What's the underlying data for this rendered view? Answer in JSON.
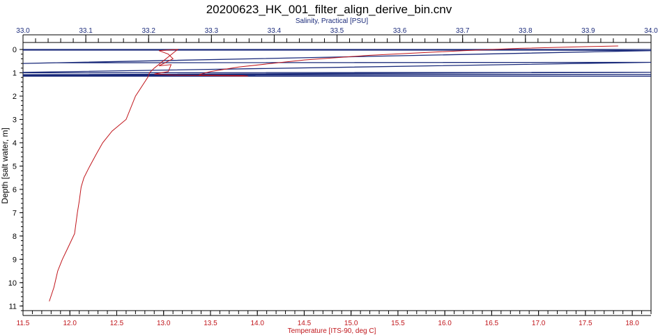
{
  "chart_data": {
    "type": "line",
    "title": "20200623_HK_001_filter_align_derive_bin.cnv",
    "top_axis": {
      "label": "Salinity, Practical [PSU]",
      "lim": [
        33.0,
        34.0
      ],
      "ticks": [
        "33.0",
        "33.1",
        "33.2",
        "33.3",
        "33.4",
        "33.5",
        "33.6",
        "33.7",
        "33.8",
        "33.9",
        "34.0"
      ],
      "color": "#1a2a7a"
    },
    "bottom_axis": {
      "label": "Temperature [ITS-90, deg C]",
      "lim": [
        11.5,
        18.2
      ],
      "ticks": [
        "11.5",
        "12.0",
        "12.5",
        "13.0",
        "13.5",
        "14.0",
        "14.5",
        "15.0",
        "15.5",
        "16.0",
        "16.5",
        "17.0",
        "17.5",
        "18.0"
      ],
      "color": "#c0141a"
    },
    "left_axis": {
      "label": "Depth [salt water, m]",
      "lim": [
        -0.3,
        11.2
      ],
      "inverted": true,
      "ticks": [
        "0",
        "1",
        "2",
        "3",
        "4",
        "5",
        "6",
        "7",
        "8",
        "9",
        "10",
        "11"
      ]
    },
    "grid": false,
    "series": [
      {
        "axis": "top",
        "color": "#1a2a7a",
        "points": [
          [
            33.0,
            0.0
          ],
          [
            33.26,
            0.0
          ],
          [
            33.0,
            0.0
          ],
          [
            34.0,
            0.0
          ],
          [
            33.0,
            0.03
          ],
          [
            33.83,
            0.03
          ],
          [
            34.0,
            0.05
          ],
          [
            33.0,
            0.6
          ],
          [
            33.05,
            0.57
          ],
          [
            34.0,
            0.55
          ],
          [
            33.0,
            0.98
          ],
          [
            33.0,
            1.0
          ],
          [
            34.0,
            0.98
          ],
          [
            33.0,
            1.08
          ],
          [
            34.0,
            1.08
          ],
          [
            33.0,
            1.12
          ],
          [
            33.37,
            1.12
          ],
          [
            33.0,
            1.15
          ],
          [
            34.0,
            1.15
          ]
        ]
      },
      {
        "axis": "bottom",
        "color": "#c0141a",
        "points": [
          [
            17.85,
            -0.15
          ],
          [
            17.5,
            -0.12
          ],
          [
            16.8,
            -0.05
          ],
          [
            16.2,
            0.05
          ],
          [
            15.2,
            0.25
          ],
          [
            14.5,
            0.45
          ],
          [
            13.8,
            0.75
          ],
          [
            13.5,
            0.95
          ],
          [
            13.4,
            1.05
          ],
          [
            13.38,
            1.1
          ],
          [
            13.85,
            1.12
          ],
          [
            13.9,
            1.14
          ],
          [
            13.1,
            1.1
          ],
          [
            12.9,
            1.05
          ],
          [
            13.05,
            0.95
          ],
          [
            13.08,
            0.65
          ],
          [
            12.95,
            0.7
          ],
          [
            13.1,
            0.4
          ],
          [
            13.05,
            0.2
          ],
          [
            12.95,
            0.05
          ],
          [
            13.15,
            0.0
          ],
          [
            12.9,
            0.8
          ],
          [
            12.85,
            1.0
          ],
          [
            12.83,
            1.2
          ],
          [
            12.7,
            2.0
          ],
          [
            12.6,
            3.0
          ],
          [
            12.45,
            3.5
          ],
          [
            12.35,
            4.0
          ],
          [
            12.28,
            4.5
          ],
          [
            12.2,
            5.1
          ],
          [
            12.15,
            5.5
          ],
          [
            12.12,
            5.9
          ],
          [
            12.1,
            6.5
          ],
          [
            12.08,
            7.0
          ],
          [
            12.05,
            7.9
          ],
          [
            11.98,
            8.5
          ],
          [
            11.92,
            9.0
          ],
          [
            11.87,
            9.5
          ],
          [
            11.83,
            10.2
          ],
          [
            11.78,
            10.8
          ]
        ]
      }
    ]
  }
}
